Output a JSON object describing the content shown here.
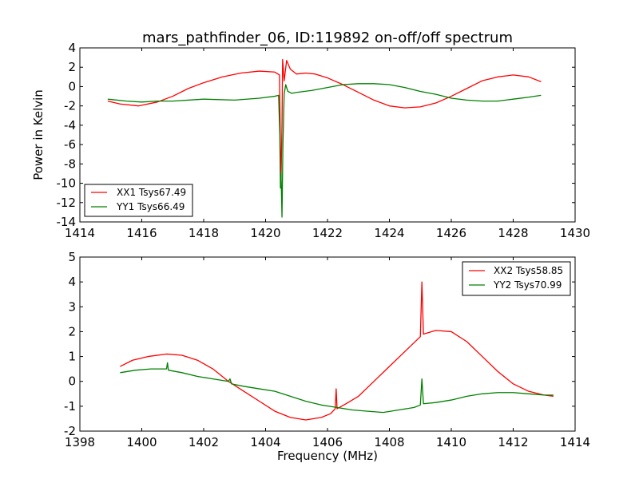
{
  "chart_data": [
    {
      "type": "line",
      "title": "mars_pathfinder_06, ID:119892 on-off/off spectrum",
      "xlabel": "",
      "ylabel": "Power in Kelvin",
      "xlim": [
        1414,
        1430
      ],
      "ylim": [
        -14,
        4
      ],
      "xticks": [
        1414,
        1416,
        1418,
        1420,
        1422,
        1424,
        1426,
        1428,
        1430
      ],
      "yticks": [
        4,
        2,
        0,
        -2,
        -4,
        -6,
        -8,
        -10,
        -12,
        -14
      ],
      "legend_position": "lower-left",
      "grid": false,
      "series": [
        {
          "name": "XX1 Tsys67.49",
          "color": "#ff0000",
          "points": [
            [
              1414.9,
              -1.5
            ],
            [
              1415.3,
              -1.8
            ],
            [
              1415.9,
              -2.0
            ],
            [
              1416.5,
              -1.6
            ],
            [
              1417.0,
              -1.0
            ],
            [
              1417.5,
              -0.2
            ],
            [
              1418.0,
              0.4
            ],
            [
              1418.6,
              1.0
            ],
            [
              1419.2,
              1.4
            ],
            [
              1419.8,
              1.6
            ],
            [
              1420.3,
              1.5
            ],
            [
              1420.45,
              1.2
            ],
            [
              1420.48,
              -6.5
            ],
            [
              1420.5,
              -9.5
            ],
            [
              1420.53,
              -4.0
            ],
            [
              1420.55,
              2.8
            ],
            [
              1420.6,
              0.6
            ],
            [
              1420.68,
              2.7
            ],
            [
              1420.8,
              1.8
            ],
            [
              1421.0,
              1.3
            ],
            [
              1421.3,
              1.4
            ],
            [
              1421.6,
              1.3
            ],
            [
              1422.0,
              0.9
            ],
            [
              1422.5,
              0.2
            ],
            [
              1423.0,
              -0.6
            ],
            [
              1423.5,
              -1.4
            ],
            [
              1424.0,
              -2.0
            ],
            [
              1424.5,
              -2.2
            ],
            [
              1425.0,
              -2.1
            ],
            [
              1425.5,
              -1.7
            ],
            [
              1426.0,
              -1.0
            ],
            [
              1426.5,
              -0.2
            ],
            [
              1427.0,
              0.6
            ],
            [
              1427.5,
              1.0
            ],
            [
              1428.0,
              1.2
            ],
            [
              1428.5,
              1.0
            ],
            [
              1428.9,
              0.5
            ]
          ]
        },
        {
          "name": "YY1 Tsys66.49",
          "color": "#008000",
          "points": [
            [
              1414.9,
              -1.3
            ],
            [
              1415.5,
              -1.5
            ],
            [
              1416.0,
              -1.6
            ],
            [
              1416.5,
              -1.5
            ],
            [
              1417.0,
              -1.5
            ],
            [
              1418.0,
              -1.3
            ],
            [
              1419.0,
              -1.4
            ],
            [
              1419.8,
              -1.2
            ],
            [
              1420.3,
              -1.0
            ],
            [
              1420.42,
              -0.9
            ],
            [
              1420.46,
              -5.0
            ],
            [
              1420.48,
              -10.5
            ],
            [
              1420.5,
              -9.0
            ],
            [
              1420.53,
              -13.5
            ],
            [
              1420.56,
              -6.0
            ],
            [
              1420.6,
              -0.8
            ],
            [
              1420.65,
              0.2
            ],
            [
              1420.72,
              -0.5
            ],
            [
              1420.85,
              -0.7
            ],
            [
              1421.0,
              -0.6
            ],
            [
              1421.5,
              -0.4
            ],
            [
              1422.0,
              -0.1
            ],
            [
              1422.5,
              0.2
            ],
            [
              1423.0,
              0.3
            ],
            [
              1423.5,
              0.3
            ],
            [
              1424.0,
              0.2
            ],
            [
              1424.5,
              -0.1
            ],
            [
              1425.0,
              -0.5
            ],
            [
              1425.5,
              -0.8
            ],
            [
              1426.0,
              -1.2
            ],
            [
              1426.5,
              -1.4
            ],
            [
              1427.0,
              -1.5
            ],
            [
              1427.5,
              -1.5
            ],
            [
              1428.0,
              -1.3
            ],
            [
              1428.5,
              -1.1
            ],
            [
              1428.9,
              -0.9
            ]
          ]
        }
      ]
    },
    {
      "type": "line",
      "title": "",
      "xlabel": "Frequency (MHz)",
      "ylabel": "",
      "xlim": [
        1398,
        1414
      ],
      "ylim": [
        -2,
        5
      ],
      "xticks": [
        1398,
        1400,
        1402,
        1404,
        1406,
        1408,
        1410,
        1412,
        1414
      ],
      "yticks": [
        5,
        4,
        3,
        2,
        1,
        0,
        -1,
        -2
      ],
      "legend_position": "top-right",
      "grid": false,
      "series": [
        {
          "name": "XX2 Tsys58.85",
          "color": "#ff0000",
          "points": [
            [
              1399.3,
              0.6
            ],
            [
              1399.7,
              0.85
            ],
            [
              1400.2,
              1.0
            ],
            [
              1400.8,
              1.1
            ],
            [
              1401.3,
              1.05
            ],
            [
              1401.8,
              0.85
            ],
            [
              1402.3,
              0.5
            ],
            [
              1402.8,
              0.0
            ],
            [
              1403.3,
              -0.4
            ],
            [
              1403.8,
              -0.8
            ],
            [
              1404.3,
              -1.2
            ],
            [
              1404.8,
              -1.45
            ],
            [
              1405.3,
              -1.55
            ],
            [
              1405.8,
              -1.45
            ],
            [
              1406.1,
              -1.3
            ],
            [
              1406.25,
              -1.1
            ],
            [
              1406.28,
              -0.3
            ],
            [
              1406.31,
              -1.1
            ],
            [
              1406.6,
              -0.9
            ],
            [
              1407.0,
              -0.6
            ],
            [
              1407.5,
              0.0
            ],
            [
              1408.0,
              0.6
            ],
            [
              1408.5,
              1.2
            ],
            [
              1409.0,
              1.8
            ],
            [
              1409.05,
              4.0
            ],
            [
              1409.1,
              1.9
            ],
            [
              1409.5,
              2.05
            ],
            [
              1410.0,
              2.0
            ],
            [
              1410.5,
              1.6
            ],
            [
              1411.0,
              1.0
            ],
            [
              1411.5,
              0.4
            ],
            [
              1412.0,
              -0.1
            ],
            [
              1412.5,
              -0.4
            ],
            [
              1413.0,
              -0.55
            ],
            [
              1413.3,
              -0.6
            ]
          ]
        },
        {
          "name": "YY2 Tsys70.99",
          "color": "#008000",
          "points": [
            [
              1399.3,
              0.35
            ],
            [
              1399.8,
              0.45
            ],
            [
              1400.3,
              0.5
            ],
            [
              1400.8,
              0.5
            ],
            [
              1400.83,
              0.75
            ],
            [
              1400.86,
              0.45
            ],
            [
              1401.3,
              0.35
            ],
            [
              1401.8,
              0.2
            ],
            [
              1402.3,
              0.1
            ],
            [
              1402.8,
              0.0
            ],
            [
              1402.85,
              0.1
            ],
            [
              1402.9,
              -0.1
            ],
            [
              1403.3,
              -0.2
            ],
            [
              1403.8,
              -0.3
            ],
            [
              1404.3,
              -0.4
            ],
            [
              1404.8,
              -0.6
            ],
            [
              1405.3,
              -0.8
            ],
            [
              1405.8,
              -0.95
            ],
            [
              1406.3,
              -1.05
            ],
            [
              1406.8,
              -1.15
            ],
            [
              1407.3,
              -1.2
            ],
            [
              1407.8,
              -1.25
            ],
            [
              1408.3,
              -1.15
            ],
            [
              1408.8,
              -1.05
            ],
            [
              1409.0,
              -0.95
            ],
            [
              1409.05,
              0.1
            ],
            [
              1409.1,
              -0.9
            ],
            [
              1409.5,
              -0.85
            ],
            [
              1410.0,
              -0.75
            ],
            [
              1410.5,
              -0.6
            ],
            [
              1411.0,
              -0.5
            ],
            [
              1411.5,
              -0.45
            ],
            [
              1412.0,
              -0.45
            ],
            [
              1412.5,
              -0.5
            ],
            [
              1413.0,
              -0.55
            ],
            [
              1413.3,
              -0.55
            ]
          ]
        }
      ]
    }
  ]
}
